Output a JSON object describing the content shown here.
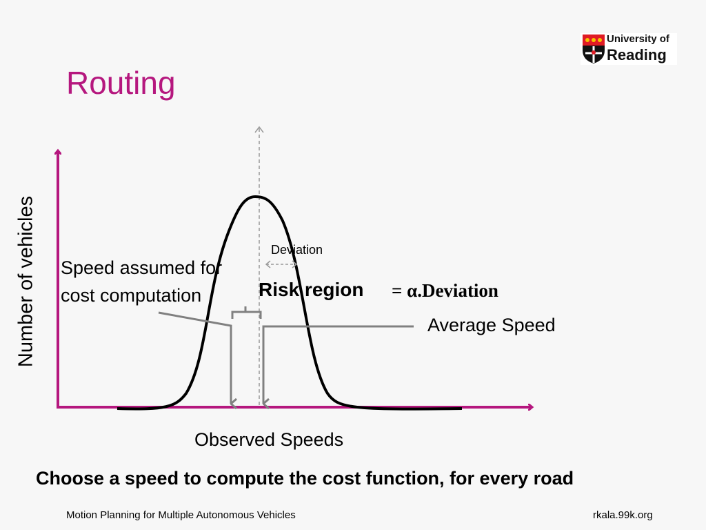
{
  "slide": {
    "title": "Routing",
    "logo": {
      "line1": "University of",
      "line2": "Reading"
    },
    "footer_left": "Motion Planning  for Multiple Autonomous Vehicles",
    "footer_right": "rkala.99k.org",
    "caption": "Choose a speed to compute the cost function, for every road"
  },
  "diagram": {
    "y_axis_label": "Number of vehicles",
    "x_axis_label": "Observed Speeds",
    "speed_label": [
      "Speed assumed for",
      "cost computation"
    ],
    "deviation_label": "Deviation",
    "risk_label": "Risk region",
    "risk_equation": "= α.Deviation",
    "average_label": "Average Speed",
    "colors": {
      "axis": "#b5177e",
      "curve": "#000000",
      "pointer": "#808080",
      "title": "#b5177e"
    }
  }
}
